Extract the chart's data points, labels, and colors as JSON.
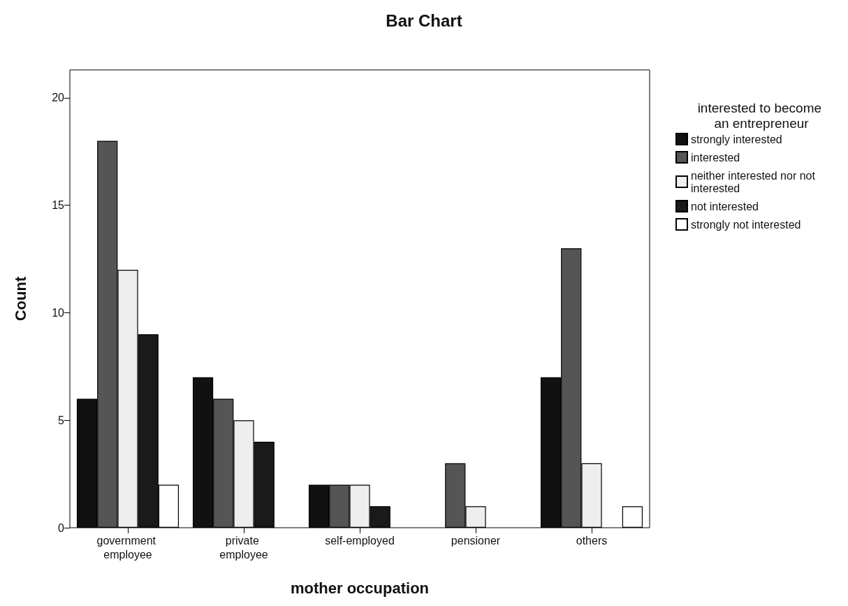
{
  "chart_data": {
    "type": "bar",
    "title": "Bar Chart",
    "xlabel": "mother occupation",
    "ylabel": "Count",
    "legend_title": "interested to become an entrepreneur",
    "categories": [
      "government employee",
      "private employee",
      "self-employed",
      "pensioner",
      "others"
    ],
    "series": [
      {
        "name": "strongly interested",
        "color": "#111111",
        "values": [
          6,
          7,
          2,
          0,
          7
        ]
      },
      {
        "name": "interested",
        "color": "#555555",
        "values": [
          18,
          6,
          2,
          3,
          13
        ]
      },
      {
        "name": "neither interested nor not interested",
        "color": "#eeeeee",
        "values": [
          12,
          5,
          2,
          1,
          3
        ]
      },
      {
        "name": "not interested",
        "color": "#1a1a1a",
        "values": [
          9,
          4,
          1,
          0,
          0
        ]
      },
      {
        "name": "strongly not interested",
        "color": "#ffffff",
        "values": [
          2,
          0,
          0,
          0,
          1
        ]
      }
    ],
    "ylim": [
      0,
      21.3
    ],
    "yticks": [
      0,
      5,
      10,
      15,
      20
    ],
    "grid": false,
    "legend": "right"
  }
}
